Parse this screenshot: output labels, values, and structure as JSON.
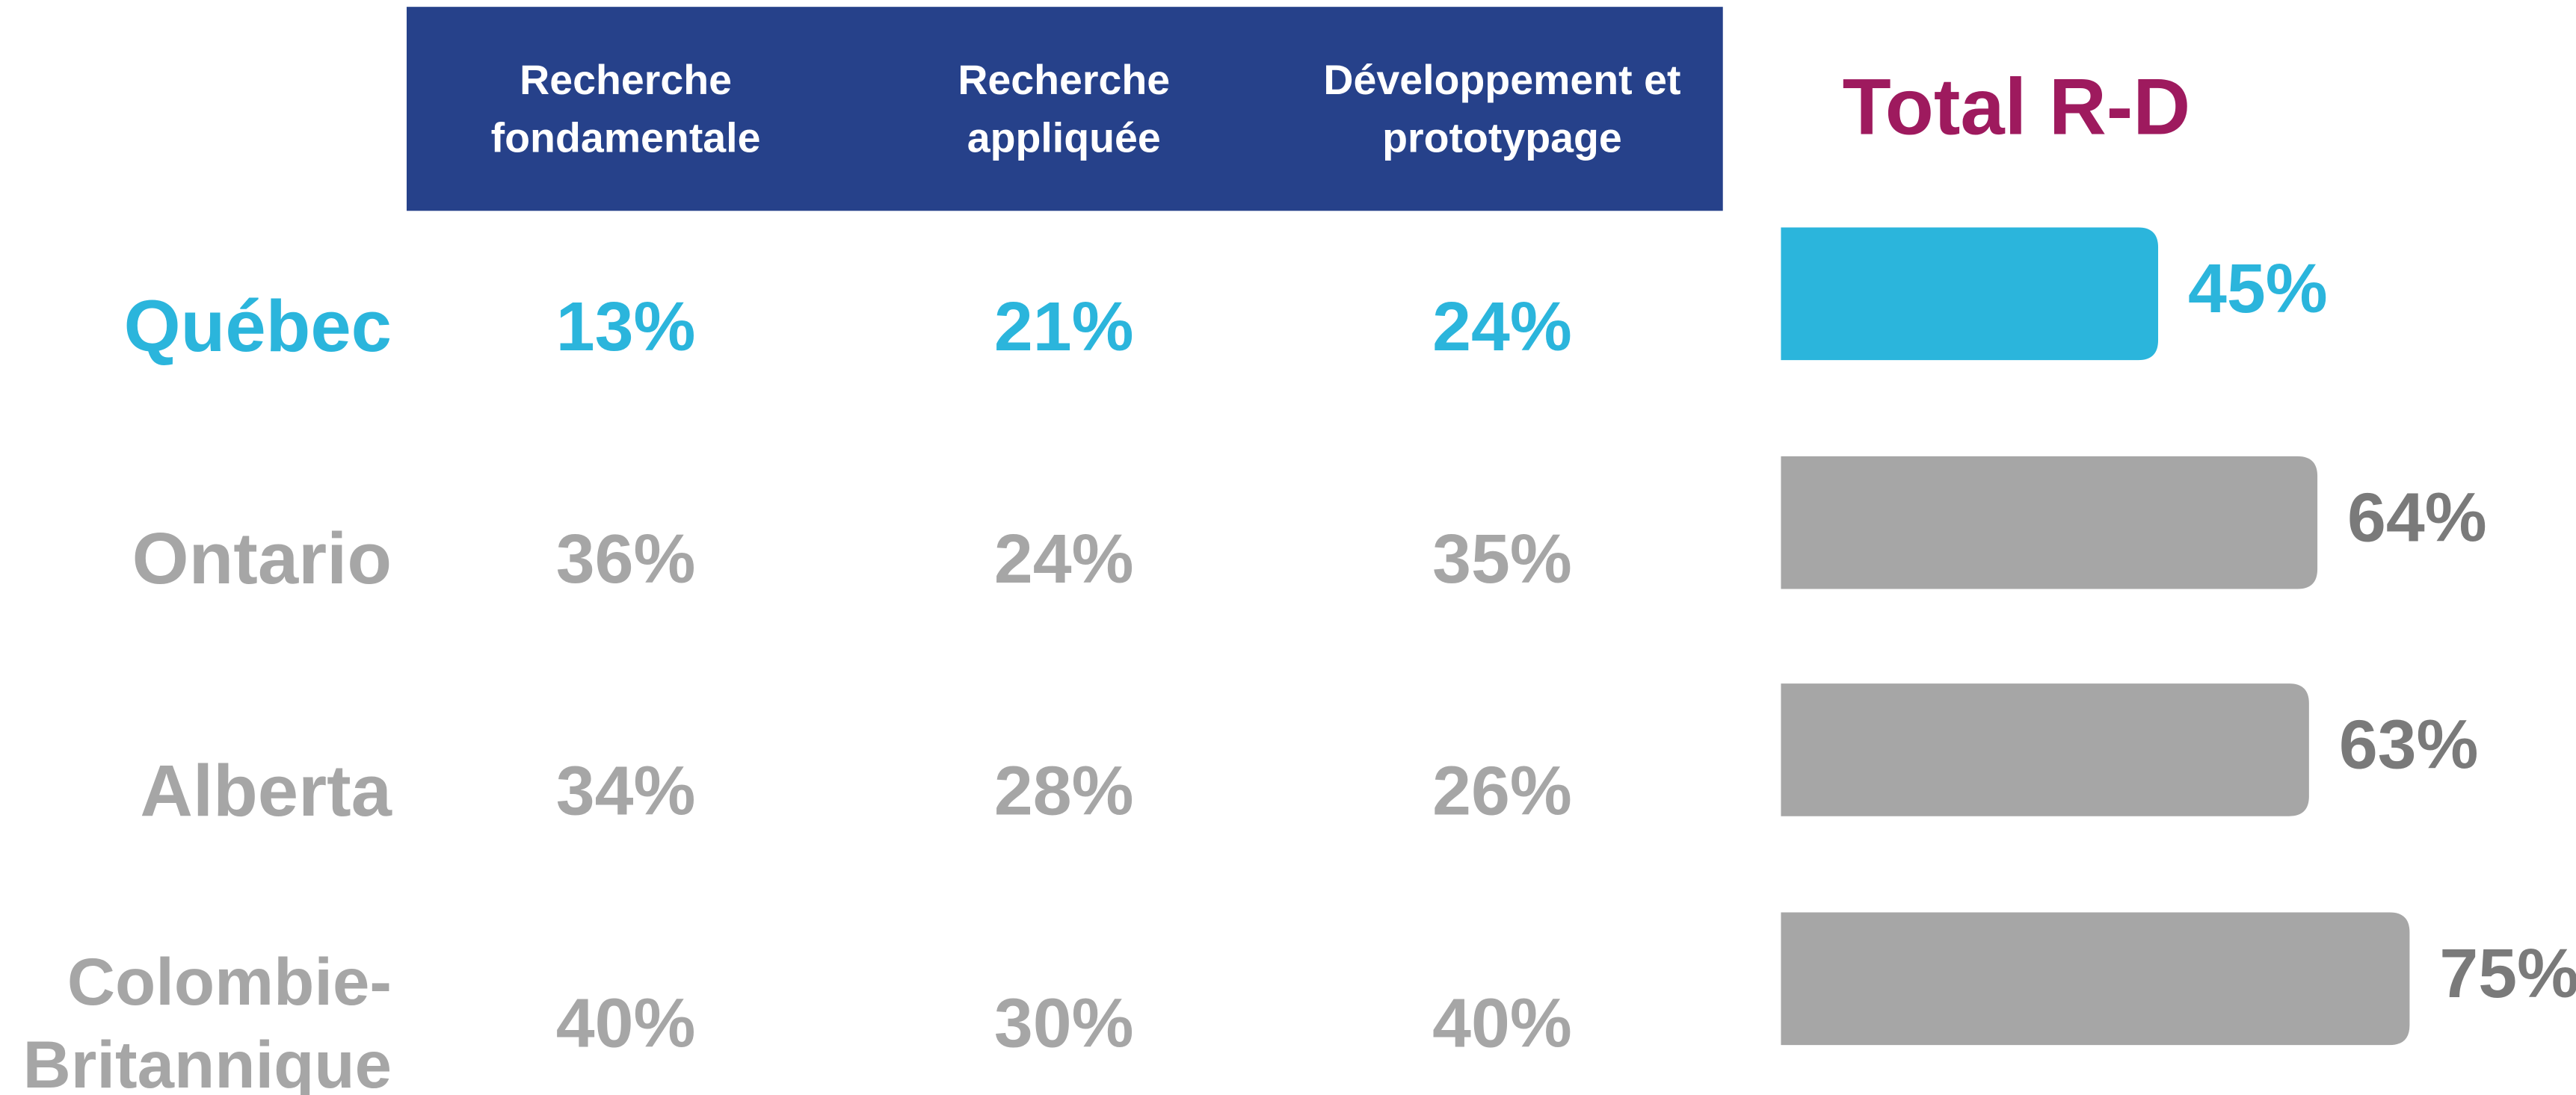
{
  "table": {
    "header_color": "#26418a",
    "columns": [
      [
        "Recherche",
        "fondamentale"
      ],
      [
        "Recherche",
        "appliquée"
      ],
      [
        "Développement et",
        "prototypage"
      ]
    ],
    "rows": [
      {
        "label": [
          "Québec"
        ],
        "color": "#2bb5dc",
        "values": [
          "13%",
          "21%",
          "24%"
        ]
      },
      {
        "label": [
          "Ontario"
        ],
        "color": "#a6a6a6",
        "values": [
          "36%",
          "24%",
          "35%"
        ]
      },
      {
        "label": [
          "Alberta"
        ],
        "color": "#a6a6a6",
        "values": [
          "34%",
          "28%",
          "26%"
        ]
      },
      {
        "label": [
          "Colombie-",
          "Britannique"
        ],
        "color": "#a6a6a6",
        "values": [
          "40%",
          "30%",
          "40%"
        ]
      }
    ]
  },
  "chart_data": {
    "type": "bar",
    "title": "Total R-D",
    "title_color": "#9e1a5e",
    "values": [
      45,
      64,
      63,
      75
    ],
    "value_labels": [
      "45%",
      "64%",
      "63%",
      "75%"
    ],
    "colors": [
      "#2bb5dc",
      "#a6a6a6",
      "#a6a6a6",
      "#a6a6a6"
    ],
    "label_colors": [
      "#2bb5dc",
      "#7a7a7a",
      "#7a7a7a",
      "#7a7a7a"
    ],
    "xlim": [
      0,
      100
    ]
  }
}
